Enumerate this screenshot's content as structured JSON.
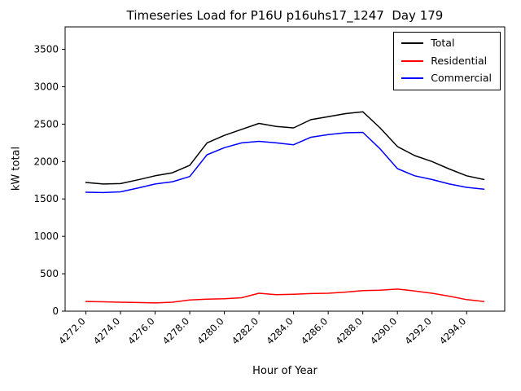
{
  "title": "Timeseries Load for P16U p16uhs17_1247  Day 179",
  "chart_data": {
    "type": "line",
    "title": "Timeseries Load for P16U p16uhs17_1247  Day 179",
    "xlabel": "Hour of Year",
    "ylabel": "kW total",
    "xlim": [
      4270.8,
      4296.2
    ],
    "ylim": [
      0,
      3800
    ],
    "x_ticks": [
      "4272.0",
      "4274.0",
      "4276.0",
      "4278.0",
      "4280.0",
      "4282.0",
      "4284.0",
      "4286.0",
      "4288.0",
      "4290.0",
      "4292.0",
      "4294.0"
    ],
    "y_ticks": [
      0,
      500,
      1000,
      1500,
      2000,
      2500,
      3000,
      3500
    ],
    "grid": false,
    "legend_position": "upper right",
    "x": [
      4272,
      4273,
      4274,
      4275,
      4276,
      4277,
      4278,
      4279,
      4280,
      4281,
      4282,
      4283,
      4284,
      4285,
      4286,
      4287,
      4288,
      4289,
      4290,
      4291,
      4292,
      4293,
      4294,
      4295
    ],
    "series": [
      {
        "name": "Total",
        "color": "#000000",
        "values": [
          1720,
          1700,
          1705,
          1755,
          1810,
          1850,
          1950,
          2250,
          2350,
          2430,
          2510,
          2470,
          2450,
          2560,
          2600,
          2640,
          2665,
          2450,
          2200,
          2080,
          2000,
          1900,
          1810,
          1760
        ]
      },
      {
        "name": "Residential",
        "color": "#ff0000",
        "values": [
          130,
          125,
          120,
          115,
          110,
          120,
          150,
          160,
          165,
          180,
          240,
          220,
          225,
          235,
          240,
          255,
          275,
          280,
          295,
          270,
          240,
          200,
          155,
          130
        ]
      },
      {
        "name": "Commercial",
        "color": "#0000ff",
        "values": [
          1590,
          1585,
          1595,
          1645,
          1700,
          1730,
          1800,
          2090,
          2185,
          2250,
          2270,
          2250,
          2225,
          2325,
          2360,
          2385,
          2390,
          2170,
          1905,
          1810,
          1760,
          1700,
          1655,
          1630
        ]
      }
    ]
  }
}
